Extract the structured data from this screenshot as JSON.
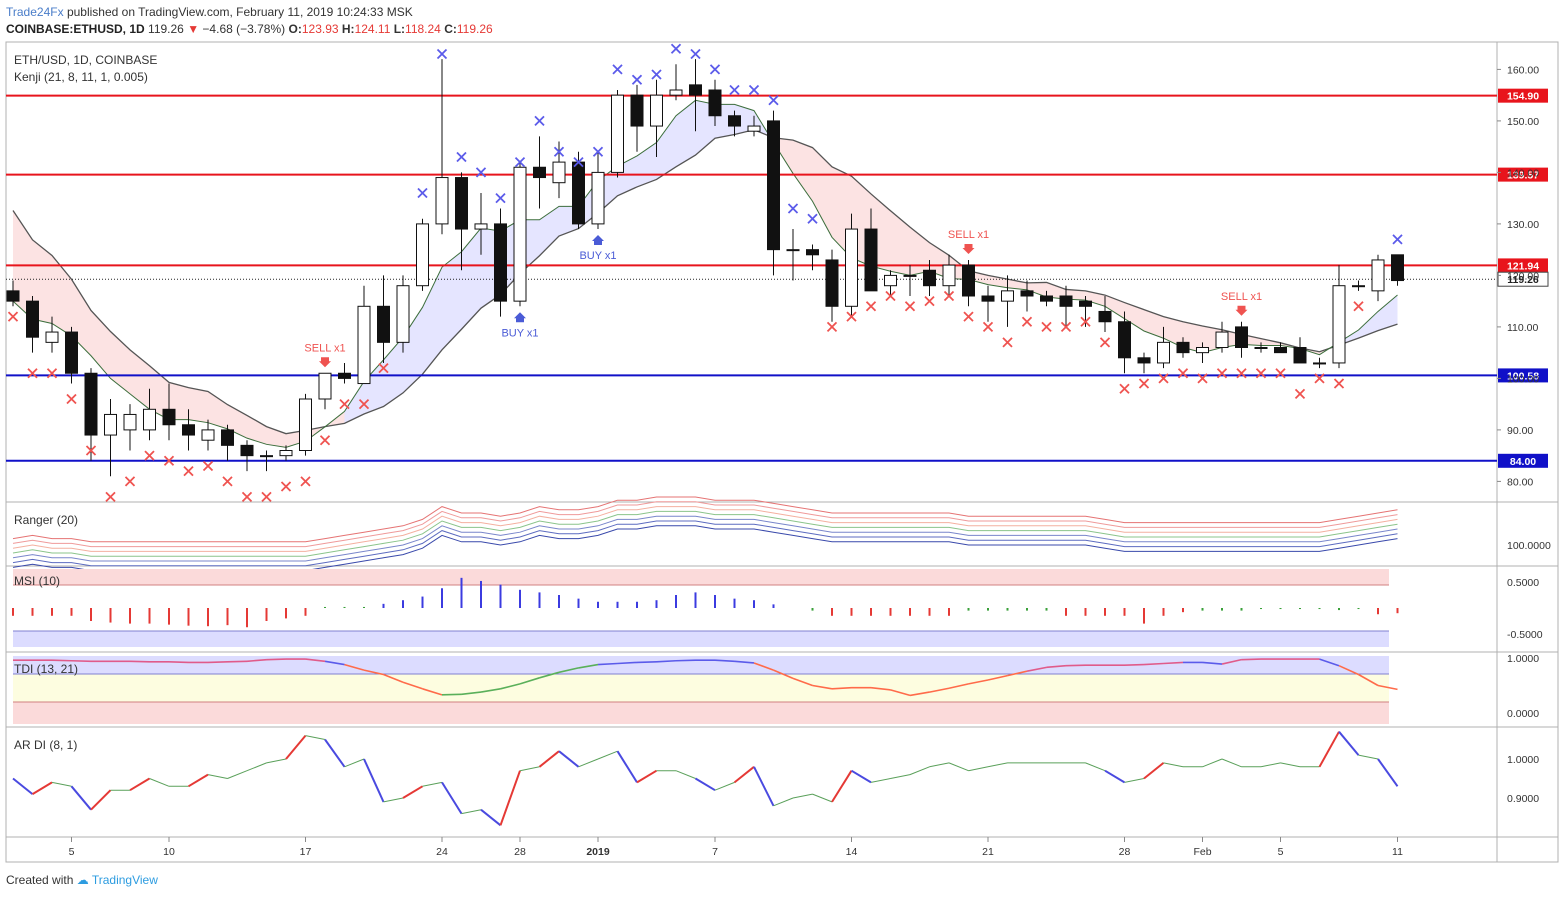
{
  "header": {
    "publisher": "Trade24Fx",
    "published_text": "published on TradingView.com, February 11, 2019 10:24:33 MSK",
    "symbol": "COINBASE:ETHUSD, 1D",
    "last": "119.26",
    "change": "−4.68 (−3.78%)",
    "o": "123.93",
    "h": "124.11",
    "l": "118.24",
    "c": "119.26"
  },
  "footer": {
    "created_with": "Created with",
    "brand": "TradingView"
  },
  "colors": {
    "red_line": "#e8141c",
    "blue_line": "#1010c8",
    "bull": "#ffffff",
    "bear": "#111111",
    "x_red": "#ef5350",
    "x_blue": "#5b5bea",
    "label_red": "#d50000",
    "label_blue": "#1010c8"
  },
  "chart_data": [
    {
      "type": "candlestick",
      "title": "ETH/USD, 1D, COINBASE",
      "subtitle": "Kenji (21, 8, 11, 1, 0.005)",
      "ylim": [
        75,
        165
      ],
      "y_ticks": [
        {
          "v": 80,
          "label": "80.00"
        },
        {
          "v": 90,
          "label": "90.00"
        },
        {
          "v": 100,
          "label": "100.00"
        },
        {
          "v": 110,
          "label": "110.00"
        },
        {
          "v": 120,
          "label": "120.00"
        },
        {
          "v": 130,
          "label": "130.00"
        },
        {
          "v": 140,
          "label": "140.00"
        },
        {
          "v": 150,
          "label": "150.00"
        },
        {
          "v": 160,
          "label": "160.00"
        }
      ],
      "x_labels": [
        {
          "i": 3,
          "label": "5"
        },
        {
          "i": 8,
          "label": "10"
        },
        {
          "i": 15,
          "label": "17"
        },
        {
          "i": 22,
          "label": "24"
        },
        {
          "i": 26,
          "label": "28"
        },
        {
          "i": 30,
          "label": "2019"
        },
        {
          "i": 36,
          "label": "7"
        },
        {
          "i": 43,
          "label": "14"
        },
        {
          "i": 50,
          "label": "21"
        },
        {
          "i": 57,
          "label": "28"
        },
        {
          "i": 61,
          "label": "Feb"
        },
        {
          "i": 65,
          "label": "5"
        },
        {
          "i": 71,
          "label": "11"
        }
      ],
      "levels": [
        {
          "value": 154.9,
          "label": "154.90",
          "color": "red"
        },
        {
          "value": 139.57,
          "label": "139.57",
          "color": "red"
        },
        {
          "value": 121.94,
          "label": "121.94",
          "color": "red"
        },
        {
          "value": 100.58,
          "label": "100.58",
          "color": "blue"
        },
        {
          "value": 84.0,
          "label": "84.00",
          "color": "blue"
        }
      ],
      "last_price": {
        "value": 119.26,
        "label": "119.26"
      },
      "candles": [
        [
          117,
          119,
          114,
          115
        ],
        [
          115,
          116,
          105,
          108
        ],
        [
          107,
          112,
          105,
          109
        ],
        [
          109,
          110,
          99,
          101
        ],
        [
          101,
          102,
          84,
          89
        ],
        [
          89,
          96,
          81,
          93
        ],
        [
          90,
          95,
          86,
          93
        ],
        [
          90,
          98,
          88,
          94
        ],
        [
          94,
          99,
          88,
          91
        ],
        [
          91,
          94,
          86,
          89
        ],
        [
          88,
          92,
          86,
          90
        ],
        [
          90,
          91,
          84,
          87
        ],
        [
          87,
          88,
          82,
          85
        ],
        [
          85,
          86,
          82,
          85
        ],
        [
          85,
          87,
          84,
          86
        ],
        [
          86,
          97,
          85,
          96
        ],
        [
          96,
          101,
          94,
          101
        ],
        [
          101,
          103,
          99,
          100
        ],
        [
          99,
          118,
          99,
          114
        ],
        [
          114,
          120,
          103,
          107
        ],
        [
          107,
          120,
          105,
          118
        ],
        [
          118,
          131,
          117,
          130
        ],
        [
          130,
          162,
          128,
          139
        ],
        [
          139,
          140,
          121,
          129
        ],
        [
          129,
          136,
          124,
          130
        ],
        [
          130,
          133,
          112,
          115
        ],
        [
          115,
          142,
          114,
          141
        ],
        [
          141,
          147,
          133,
          139
        ],
        [
          138,
          146,
          135,
          142
        ],
        [
          142,
          144,
          129,
          130
        ],
        [
          130,
          144,
          129,
          140
        ],
        [
          140,
          156,
          139,
          155
        ],
        [
          155,
          157,
          144,
          149
        ],
        [
          149,
          158,
          143,
          155
        ],
        [
          155,
          161,
          154,
          156
        ],
        [
          157,
          162,
          148,
          155
        ],
        [
          156,
          158,
          149,
          151
        ],
        [
          151,
          152,
          147,
          149
        ],
        [
          148,
          151,
          147,
          149
        ],
        [
          150,
          152,
          120,
          125
        ],
        [
          125,
          129,
          119,
          125
        ],
        [
          125,
          126,
          121,
          124
        ],
        [
          123,
          125,
          111,
          114
        ],
        [
          114,
          132,
          112,
          129
        ],
        [
          129,
          133,
          117,
          117
        ],
        [
          118,
          121,
          116,
          120
        ],
        [
          120,
          122,
          116,
          120
        ],
        [
          121,
          123,
          116,
          118
        ],
        [
          118,
          124,
          116,
          122
        ],
        [
          122,
          123,
          114,
          116
        ],
        [
          116,
          118,
          111,
          115
        ],
        [
          115,
          120,
          110,
          117
        ],
        [
          117,
          119,
          113,
          116
        ],
        [
          116,
          117,
          114,
          115
        ],
        [
          116,
          118,
          110,
          114
        ],
        [
          115,
          116,
          110,
          114
        ],
        [
          113,
          116,
          109,
          111
        ],
        [
          111,
          113,
          101,
          104
        ],
        [
          104,
          105,
          101,
          103
        ],
        [
          103,
          110,
          102,
          107
        ],
        [
          107,
          108,
          104,
          105
        ],
        [
          105,
          107,
          103,
          106
        ],
        [
          106,
          111,
          105,
          109
        ],
        [
          110,
          111,
          104,
          106
        ],
        [
          106,
          107,
          105,
          106
        ],
        [
          106,
          107,
          105,
          105
        ],
        [
          106,
          108,
          103,
          103
        ],
        [
          103,
          104,
          102,
          103
        ],
        [
          103,
          122,
          102,
          118
        ],
        [
          118,
          119,
          117,
          118
        ],
        [
          117,
          124,
          115,
          123
        ],
        [
          124,
          124,
          118,
          119
        ]
      ],
      "markers": {
        "red_x": [
          [
            0,
            112
          ],
          [
            1,
            101
          ],
          [
            2,
            101
          ],
          [
            3,
            96
          ],
          [
            4,
            86
          ],
          [
            5,
            77
          ],
          [
            6,
            80
          ],
          [
            7,
            85
          ],
          [
            8,
            84
          ],
          [
            9,
            82
          ],
          [
            10,
            83
          ],
          [
            11,
            80
          ],
          [
            12,
            77
          ],
          [
            13,
            77
          ],
          [
            14,
            79
          ],
          [
            15,
            80
          ],
          [
            16,
            88
          ],
          [
            17,
            95
          ],
          [
            18,
            95
          ],
          [
            19,
            102
          ],
          [
            42,
            110
          ],
          [
            43,
            112
          ],
          [
            44,
            114
          ],
          [
            45,
            116
          ],
          [
            46,
            114
          ],
          [
            47,
            115
          ],
          [
            48,
            116
          ],
          [
            49,
            112
          ],
          [
            50,
            110
          ],
          [
            51,
            107
          ],
          [
            52,
            111
          ],
          [
            53,
            110
          ],
          [
            54,
            110
          ],
          [
            55,
            111
          ],
          [
            56,
            107
          ],
          [
            57,
            98
          ],
          [
            58,
            99
          ],
          [
            59,
            100
          ],
          [
            60,
            101
          ],
          [
            61,
            100
          ],
          [
            62,
            101
          ],
          [
            63,
            101
          ],
          [
            64,
            101
          ],
          [
            65,
            101
          ],
          [
            66,
            97
          ],
          [
            67,
            100
          ],
          [
            68,
            99
          ],
          [
            69,
            114
          ]
        ],
        "blue_x": [
          [
            21,
            136
          ],
          [
            22,
            163
          ],
          [
            23,
            143
          ],
          [
            24,
            140
          ],
          [
            25,
            135
          ],
          [
            26,
            142
          ],
          [
            27,
            150
          ],
          [
            28,
            144
          ],
          [
            29,
            142
          ],
          [
            30,
            144
          ],
          [
            31,
            160
          ],
          [
            32,
            158
          ],
          [
            33,
            159
          ],
          [
            34,
            164
          ],
          [
            35,
            163
          ],
          [
            36,
            160
          ],
          [
            37,
            156
          ],
          [
            38,
            156
          ],
          [
            39,
            154
          ],
          [
            40,
            133
          ],
          [
            41,
            131
          ],
          [
            71,
            127
          ]
        ]
      },
      "signals": [
        {
          "i": 16,
          "type": "sell",
          "label": "SELL x1"
        },
        {
          "i": 26,
          "type": "buy",
          "label": "BUY x1"
        },
        {
          "i": 30,
          "type": "buy",
          "label": "BUY x1"
        },
        {
          "i": 49,
          "type": "sell",
          "label": "SELL x1"
        },
        {
          "i": 63,
          "type": "sell",
          "label": "SELL x1"
        }
      ]
    },
    {
      "type": "line",
      "title": "Ranger (20)",
      "y_ticks": [
        {
          "v": 100,
          "label": "100.0000"
        }
      ],
      "series": [
        {
          "name": "envelope",
          "values": [
            96,
            97,
            96,
            96,
            95,
            95,
            95,
            95,
            95,
            95,
            95,
            95,
            95,
            95,
            95,
            95,
            96,
            97,
            98,
            99,
            100,
            102,
            106,
            104,
            104,
            103,
            104,
            106,
            105,
            105,
            106,
            108,
            108,
            109,
            109,
            109,
            108,
            108,
            108,
            107,
            106,
            105,
            104,
            104,
            104,
            104,
            104,
            104,
            104,
            103,
            103,
            103,
            103,
            103,
            103,
            103,
            102,
            101,
            101,
            101,
            101,
            101,
            101,
            101,
            101,
            101,
            101,
            101,
            102,
            103,
            104,
            105
          ]
        }
      ]
    },
    {
      "type": "bar",
      "title": "MSI (10)",
      "ylim": [
        -0.75,
        0.75
      ],
      "y_ticks": [
        {
          "v": 0.5,
          "label": "0.5000"
        },
        {
          "v": -0.5,
          "label": "-0.5000"
        }
      ],
      "values": [
        -0.15,
        -0.15,
        -0.15,
        -0.15,
        -0.25,
        -0.28,
        -0.3,
        -0.3,
        -0.32,
        -0.34,
        -0.35,
        -0.33,
        -0.37,
        -0.25,
        -0.2,
        -0.15,
        0.02,
        0.02,
        0.02,
        0.08,
        0.15,
        0.22,
        0.38,
        0.58,
        0.52,
        0.45,
        0.35,
        0.3,
        0.25,
        0.18,
        0.12,
        0.12,
        0.12,
        0.15,
        0.25,
        0.3,
        0.25,
        0.18,
        0.15,
        0.07,
        null,
        -0.05,
        -0.15,
        -0.15,
        -0.15,
        -0.15,
        -0.15,
        -0.15,
        -0.15,
        -0.05,
        -0.05,
        -0.05,
        -0.05,
        -0.05,
        -0.15,
        -0.15,
        -0.15,
        -0.15,
        -0.3,
        -0.15,
        -0.08,
        -0.05,
        -0.05,
        -0.05,
        -0.02,
        -0.02,
        -0.02,
        -0.02,
        -0.04,
        -0.02,
        -0.12,
        -0.1
      ]
    },
    {
      "type": "line",
      "title": "TDI (13, 21)",
      "ylim": [
        -0.1,
        1.1
      ],
      "y_ticks": [
        {
          "v": 1.0,
          "label": "1.0000"
        },
        {
          "v": 0.0,
          "label": "0.0000"
        }
      ],
      "values": [
        0.96,
        0.96,
        0.96,
        0.95,
        0.94,
        0.94,
        0.94,
        0.93,
        0.93,
        0.92,
        0.92,
        0.93,
        0.94,
        0.97,
        0.98,
        0.98,
        0.94,
        0.88,
        0.78,
        0.7,
        0.56,
        0.44,
        0.33,
        0.34,
        0.38,
        0.44,
        0.53,
        0.64,
        0.74,
        0.82,
        0.88,
        0.9,
        0.92,
        0.93,
        0.95,
        0.96,
        0.96,
        0.94,
        0.91,
        0.78,
        0.63,
        0.5,
        0.44,
        0.46,
        0.46,
        0.42,
        0.32,
        0.38,
        0.45,
        0.53,
        0.6,
        0.68,
        0.76,
        0.83,
        0.86,
        0.87,
        0.87,
        0.87,
        0.88,
        0.9,
        0.92,
        0.92,
        0.89,
        0.97,
        0.98,
        0.98,
        0.98,
        0.98,
        0.86,
        0.7,
        0.5,
        0.43
      ]
    },
    {
      "type": "line",
      "title": "AR DI (8, 1)",
      "ylim": [
        0.8,
        1.08
      ],
      "y_ticks": [
        {
          "v": 1.0,
          "label": "1.0000"
        },
        {
          "v": 0.9,
          "label": "0.9000"
        }
      ],
      "values": [
        0.95,
        0.91,
        0.94,
        0.93,
        0.87,
        0.92,
        0.92,
        0.95,
        0.93,
        0.93,
        0.96,
        0.95,
        0.97,
        0.99,
        1.0,
        1.06,
        1.05,
        0.98,
        1.0,
        0.89,
        0.9,
        0.93,
        0.94,
        0.86,
        0.87,
        0.83,
        0.97,
        0.98,
        1.02,
        0.98,
        1.0,
        1.02,
        0.94,
        0.97,
        0.97,
        0.95,
        0.92,
        0.94,
        0.98,
        0.88,
        0.9,
        0.91,
        0.89,
        0.97,
        0.94,
        0.95,
        0.96,
        0.98,
        0.99,
        0.97,
        0.98,
        0.99,
        0.99,
        0.99,
        0.99,
        0.99,
        0.97,
        0.94,
        0.95,
        0.99,
        0.98,
        0.98,
        1.0,
        0.98,
        0.98,
        0.99,
        0.98,
        0.98,
        1.07,
        1.01,
        1.0,
        0.93
      ]
    }
  ]
}
